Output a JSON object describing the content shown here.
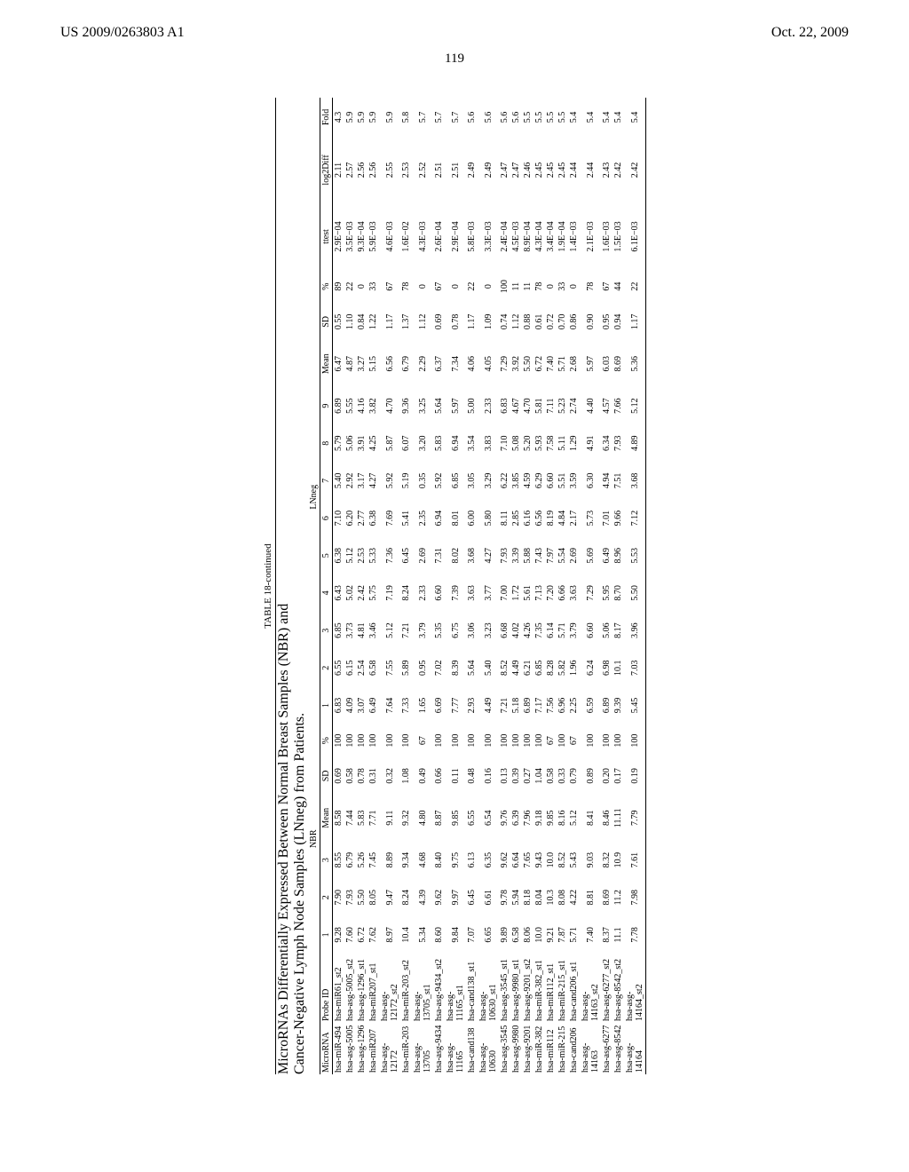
{
  "header": {
    "left": "US 2009/0263803 A1",
    "right": "Oct. 22, 2009"
  },
  "page_number": "119",
  "table": {
    "title": "TABLE 18-continued",
    "subtitle_a": "MicroRNAs Differentially Expressed Between Normal Breast Samples (NBR) and",
    "subtitle_b": "Cancer-Negative Lymph Node Samples (LNneg) from Patients.",
    "group_headers": {
      "nbr": "NBR",
      "lnneg": "LNneg"
    },
    "columns": [
      "MicroRNA",
      "Probe ID",
      "1",
      "2",
      "3",
      "Mean",
      "SD",
      "%",
      "1",
      "2",
      "3",
      "4",
      "5",
      "6",
      "7",
      "8",
      "9",
      "Mean",
      "SD",
      "%",
      "ttest",
      "log2Diff",
      "Fold"
    ],
    "rows": [
      [
        "hsa-miR-494",
        "hsa-miR61_st2",
        "9.28",
        "7.90",
        "8.55",
        "8.58",
        "0.69",
        "100",
        "6.83",
        "6.55",
        "6.85",
        "6.43",
        "6.38",
        "7.10",
        "5.40",
        "5.79",
        "6.89",
        "6.47",
        "0.55",
        "89",
        "2.9E−04",
        "2.11",
        "4.3"
      ],
      [
        "hsa-asg-5005",
        "hsa-asg-5005_st2",
        "7.60",
        "7.93",
        "6.79",
        "7.44",
        "0.58",
        "100",
        "4.09",
        "6.15",
        "3.73",
        "5.02",
        "5.12",
        "6.20",
        "2.92",
        "5.06",
        "5.55",
        "4.87",
        "1.10",
        "22",
        "3.5E−03",
        "2.57",
        "5.9"
      ],
      [
        "hsa-asg-1296",
        "hsa-asg-1296_st1",
        "6.72",
        "5.50",
        "5.26",
        "5.83",
        "0.78",
        "100",
        "3.07",
        "2.54",
        "4.81",
        "2.42",
        "2.53",
        "2.77",
        "3.17",
        "3.91",
        "4.16",
        "3.27",
        "0.84",
        "0",
        "9.3E−04",
        "2.56",
        "5.9"
      ],
      [
        "hsa-miR207",
        "hsa-miR207_st1",
        "7.62",
        "8.05",
        "7.45",
        "7.71",
        "0.31",
        "100",
        "6.49",
        "6.58",
        "3.46",
        "5.75",
        "5.33",
        "6.38",
        "4.27",
        "4.25",
        "3.82",
        "5.15",
        "1.22",
        "33",
        "5.9E−03",
        "2.56",
        "5.9"
      ],
      [
        "hsa-asg-12172",
        "hsa-asg-12172_st2",
        "8.97",
        "9.47",
        "8.89",
        "9.11",
        "0.32",
        "100",
        "7.64",
        "7.55",
        "5.12",
        "7.19",
        "7.36",
        "7.69",
        "5.92",
        "5.87",
        "4.70",
        "6.56",
        "1.17",
        "67",
        "4.6E−03",
        "2.55",
        "5.9"
      ],
      [
        "hsa-miR-203",
        "hsa-miR-203_st2",
        "10.4",
        "8.24",
        "9.34",
        "9.32",
        "1.08",
        "100",
        "7.33",
        "5.89",
        "7.21",
        "8.24",
        "6.45",
        "5.41",
        "5.19",
        "6.07",
        "9.36",
        "6.79",
        "1.37",
        "78",
        "1.6E−02",
        "2.53",
        "5.8"
      ],
      [
        "hsa-asg-13705",
        "hsa-asg-13705_st1",
        "5.34",
        "4.39",
        "4.68",
        "4.80",
        "0.49",
        "67",
        "1.65",
        "0.95",
        "3.79",
        "2.33",
        "2.69",
        "2.35",
        "0.35",
        "3.20",
        "3.25",
        "2.29",
        "1.12",
        "0",
        "4.3E−03",
        "2.52",
        "5.7"
      ],
      [
        "hsa-asg-9434",
        "hsa-asg-9434_st2",
        "8.60",
        "9.62",
        "8.40",
        "8.87",
        "0.66",
        "100",
        "6.69",
        "7.02",
        "5.35",
        "6.60",
        "7.31",
        "6.94",
        "5.92",
        "5.83",
        "5.64",
        "6.37",
        "0.69",
        "67",
        "2.6E−04",
        "2.51",
        "5.7"
      ],
      [
        "hsa-asg-11165",
        "hsa-asg-11165_st1",
        "9.84",
        "9.97",
        "9.75",
        "9.85",
        "0.11",
        "100",
        "7.77",
        "8.39",
        "6.75",
        "7.39",
        "8.02",
        "8.01",
        "6.85",
        "6.94",
        "5.97",
        "7.34",
        "0.78",
        "0",
        "2.9E−04",
        "2.51",
        "5.7"
      ],
      [
        "hsa-cand138",
        "hsa-cand138_st1",
        "7.07",
        "6.45",
        "6.13",
        "6.55",
        "0.48",
        "100",
        "2.93",
        "5.64",
        "3.06",
        "3.63",
        "3.68",
        "6.00",
        "3.05",
        "3.54",
        "5.00",
        "4.06",
        "1.17",
        "22",
        "5.8E−03",
        "2.49",
        "5.6"
      ],
      [
        "hsa-asg-10630",
        "hsa-asg-10630_st1",
        "6.65",
        "6.61",
        "6.35",
        "6.54",
        "0.16",
        "100",
        "4.49",
        "5.40",
        "3.23",
        "3.77",
        "4.27",
        "5.80",
        "3.29",
        "3.83",
        "2.33",
        "4.05",
        "1.09",
        "0",
        "3.3E−03",
        "2.49",
        "5.6"
      ],
      [
        "hsa-asg-3545",
        "hsa-asg-3545_st1",
        "9.89",
        "9.78",
        "9.62",
        "9.76",
        "0.13",
        "100",
        "7.21",
        "8.52",
        "6.68",
        "7.00",
        "7.93",
        "8.11",
        "6.22",
        "7.10",
        "6.83",
        "7.29",
        "0.74",
        "100",
        "2.4E−04",
        "2.47",
        "5.6"
      ],
      [
        "hsa-asg-9980",
        "hsa-asg-9980_st1",
        "6.58",
        "5.94",
        "6.64",
        "6.39",
        "0.39",
        "100",
        "5.18",
        "4.49",
        "4.02",
        "1.72",
        "3.39",
        "2.85",
        "3.85",
        "5.08",
        "4.67",
        "3.92",
        "1.12",
        "11",
        "4.5E−03",
        "2.47",
        "5.6"
      ],
      [
        "hsa-asg-9201",
        "hsa-asg-9201_st2",
        "8.06",
        "8.18",
        "7.65",
        "7.96",
        "0.27",
        "100",
        "6.89",
        "6.21",
        "4.26",
        "5.61",
        "5.88",
        "6.16",
        "4.59",
        "5.20",
        "4.70",
        "5.50",
        "0.88",
        "11",
        "8.9E−04",
        "2.46",
        "5.5"
      ],
      [
        "hsa-miR-382",
        "hsa-miR-382_st1",
        "10.0",
        "8.04",
        "9.43",
        "9.18",
        "1.04",
        "100",
        "7.17",
        "6.85",
        "7.35",
        "7.13",
        "7.43",
        "6.56",
        "6.29",
        "5.93",
        "5.81",
        "6.72",
        "0.61",
        "78",
        "4.3E−04",
        "2.45",
        "5.5"
      ],
      [
        "hsa-miR112",
        "hsa-miR112_st1",
        "9.21",
        "10.3",
        "10.0",
        "9.85",
        "0.58",
        "67",
        "7.56",
        "8.28",
        "6.14",
        "7.20",
        "7.97",
        "8.19",
        "6.60",
        "7.58",
        "7.11",
        "7.40",
        "0.72",
        "0",
        "3.4E−04",
        "2.45",
        "5.5"
      ],
      [
        "hsa-miR-215",
        "hsa-miR-215_st1",
        "7.87",
        "8.08",
        "8.52",
        "8.16",
        "0.33",
        "100",
        "6.96",
        "5.82",
        "5.71",
        "6.66",
        "5.54",
        "4.84",
        "5.51",
        "5.11",
        "5.23",
        "5.71",
        "0.70",
        "33",
        "1.9E−04",
        "2.45",
        "5.5"
      ],
      [
        "hsa-cand206",
        "hsa-cand206_st1",
        "5.71",
        "4.22",
        "5.43",
        "5.12",
        "0.79",
        "67",
        "2.25",
        "1.96",
        "3.79",
        "3.63",
        "2.69",
        "2.17",
        "3.59",
        "1.29",
        "2.74",
        "2.68",
        "0.86",
        "0",
        "1.4E−03",
        "2.44",
        "5.4"
      ],
      [
        "hsa-asg-14163",
        "hsa-asg-14163_st2",
        "7.40",
        "8.81",
        "9.03",
        "8.41",
        "0.89",
        "100",
        "6.59",
        "6.24",
        "6.60",
        "7.29",
        "5.69",
        "5.73",
        "6.30",
        "4.91",
        "4.40",
        "5.97",
        "0.90",
        "78",
        "2.1E−03",
        "2.44",
        "5.4"
      ],
      [
        "hsa-asg-6277",
        "hsa-asg-6277_st2",
        "8.37",
        "8.69",
        "8.32",
        "8.46",
        "0.20",
        "100",
        "6.89",
        "6.98",
        "5.06",
        "5.95",
        "6.49",
        "7.01",
        "4.94",
        "6.34",
        "4.57",
        "6.03",
        "0.95",
        "67",
        "1.6E−03",
        "2.43",
        "5.4"
      ],
      [
        "hsa-asg-8542",
        "hsa-asg-8542_st2",
        "11.1",
        "11.2",
        "10.9",
        "11.11",
        "0.17",
        "100",
        "9.39",
        "10.1",
        "8.17",
        "8.70",
        "8.96",
        "9.66",
        "7.51",
        "7.93",
        "7.66",
        "8.69",
        "0.94",
        "44",
        "1.5E−03",
        "2.42",
        "5.4"
      ],
      [
        "hsa-asg-14164",
        "hsa-asg-14164_st2",
        "7.78",
        "7.98",
        "7.61",
        "7.79",
        "0.19",
        "100",
        "5.45",
        "7.03",
        "3.96",
        "5.50",
        "5.53",
        "7.12",
        "3.68",
        "4.89",
        "5.12",
        "5.36",
        "1.17",
        "22",
        "6.1E−03",
        "2.42",
        "5.4"
      ]
    ]
  }
}
